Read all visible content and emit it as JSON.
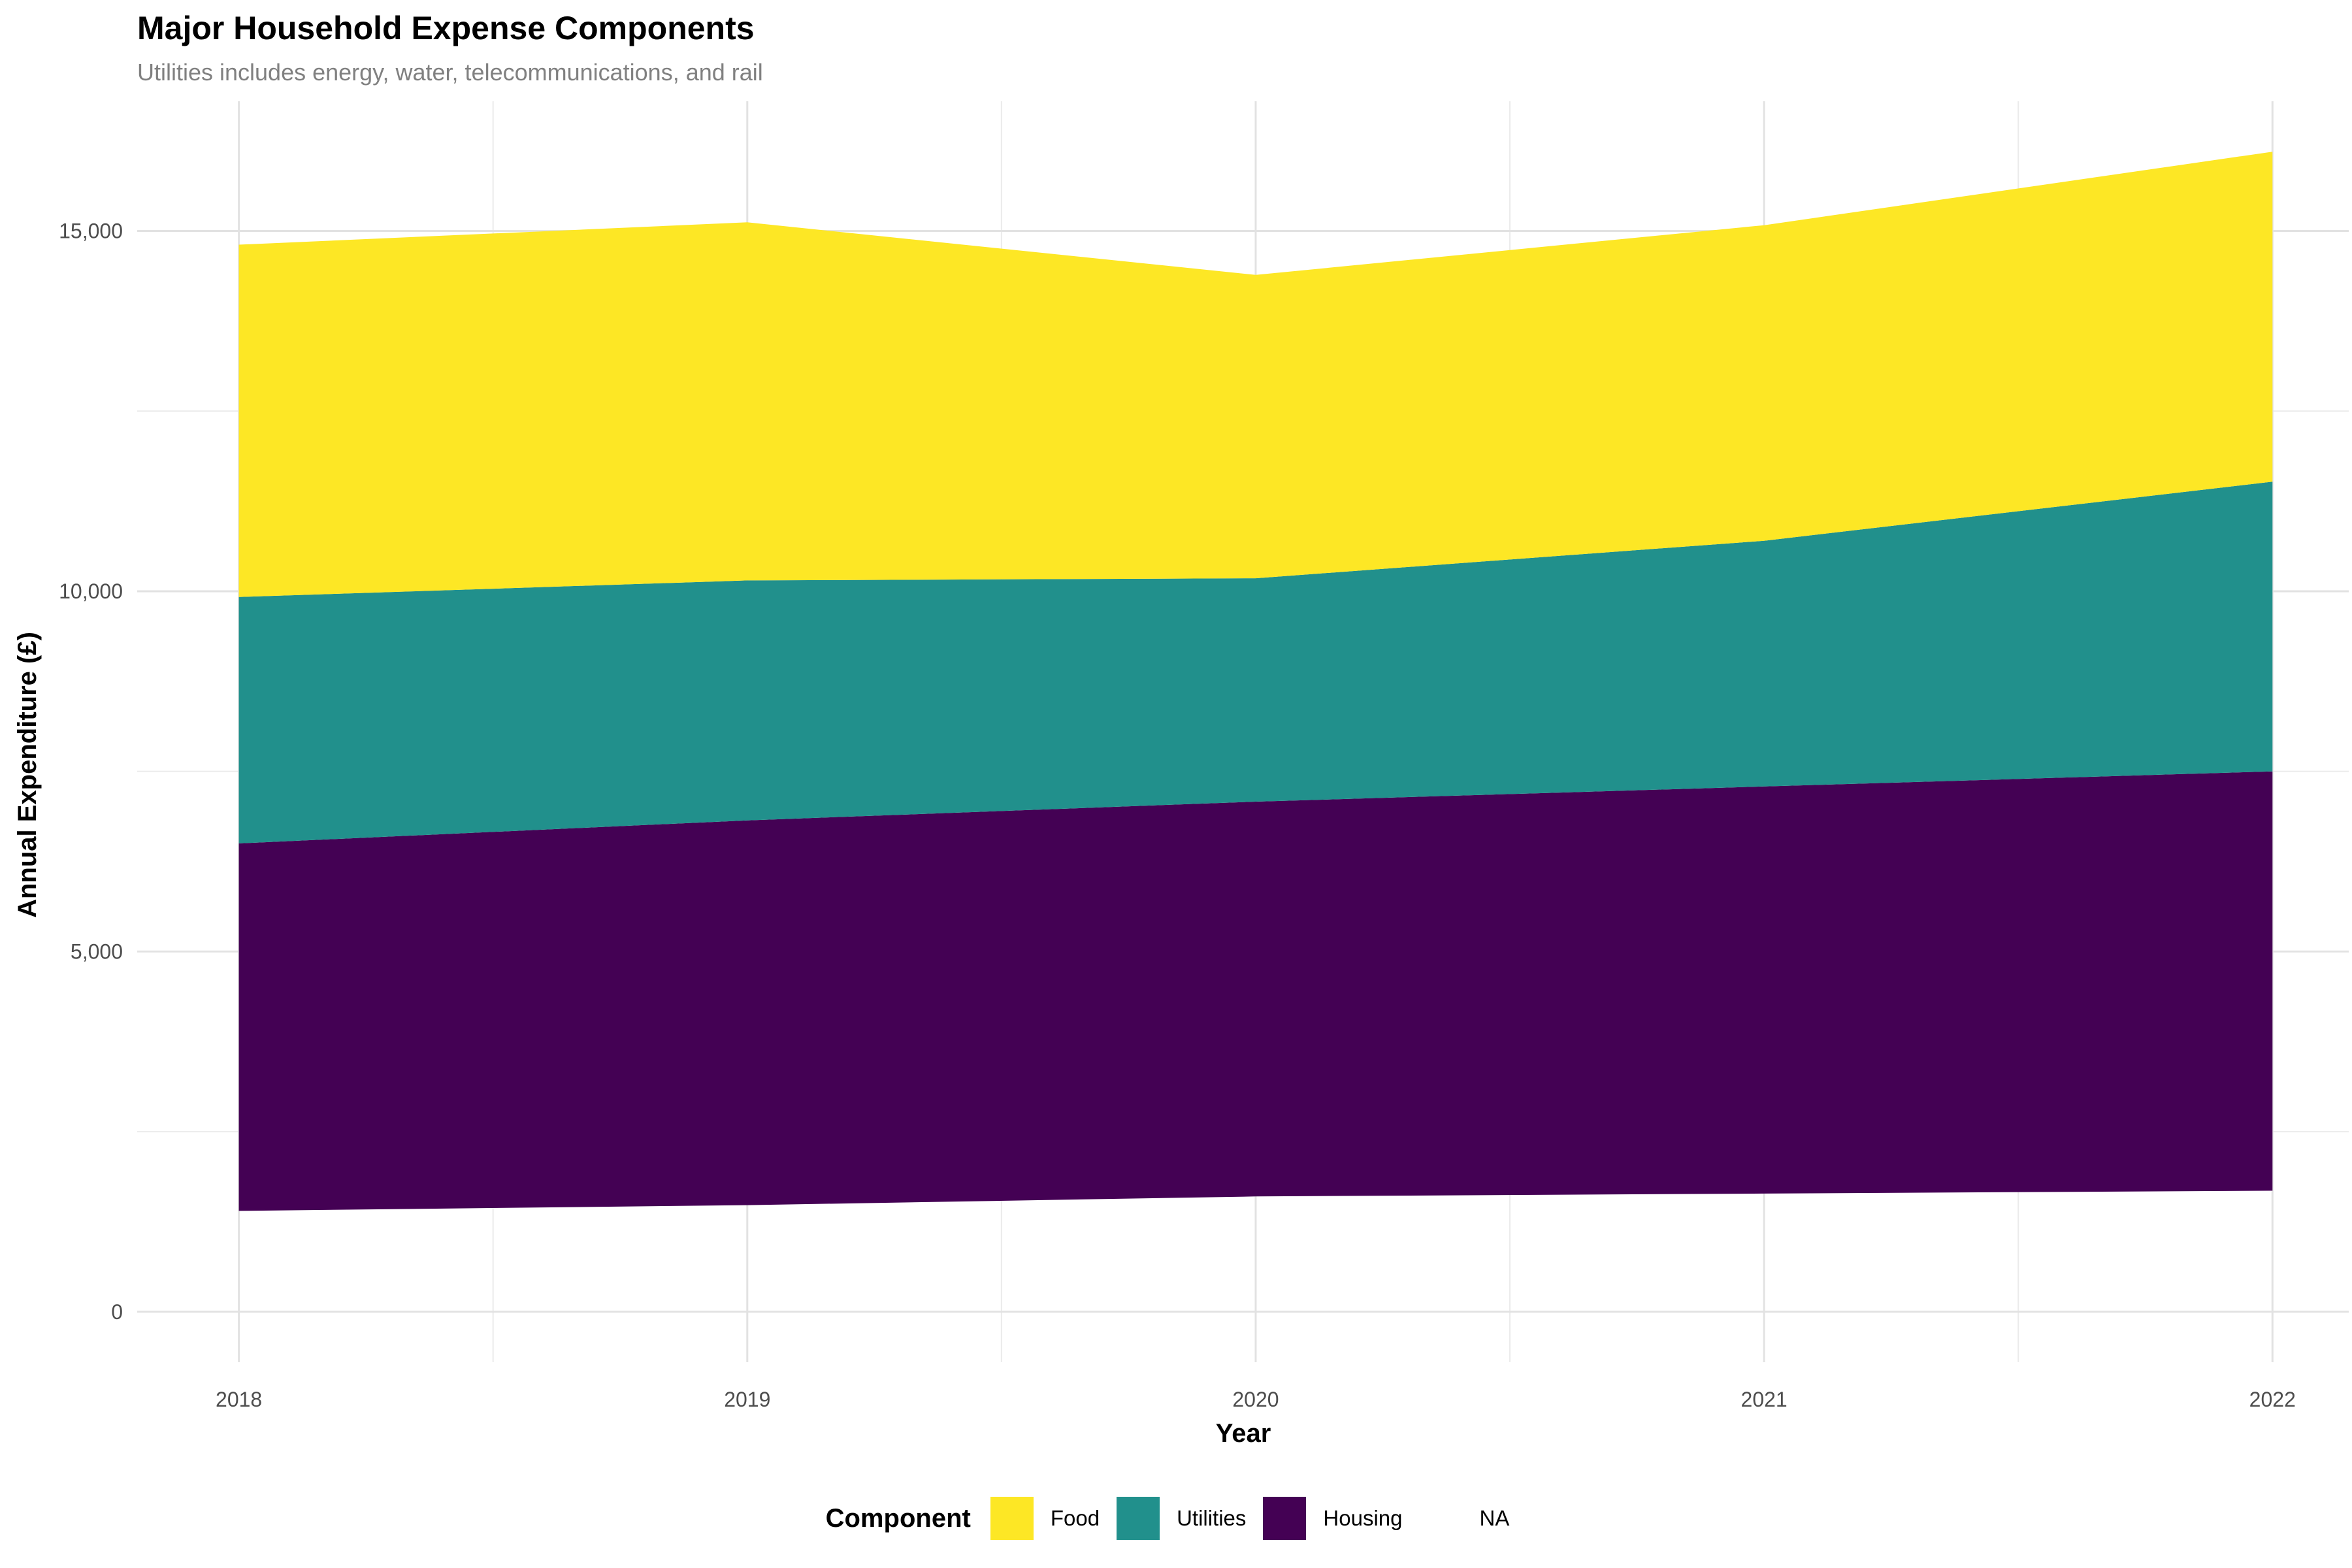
{
  "chart_data": {
    "type": "area",
    "title": "Major Household Expense Components",
    "subtitle": "Utilities includes energy, water, telecommunications, and rail",
    "xlabel": "Year",
    "ylabel": "Annual Expenditure (£)",
    "x": [
      2018,
      2019,
      2020,
      2021,
      2022
    ],
    "x_tick_labels": [
      "2018",
      "2019",
      "2020",
      "2021",
      "2022"
    ],
    "ylim": [
      -700,
      16800
    ],
    "y_ticks": [
      0,
      5000,
      10000,
      15000
    ],
    "y_tick_labels": [
      "0",
      "5,000",
      "10,000",
      "15,000"
    ],
    "stacking": "stacked",
    "base_values": [
      1400,
      1480,
      1600,
      1640,
      1680
    ],
    "series": [
      {
        "name": "Housing",
        "color": "#440154",
        "values": [
          5100,
          5340,
          5480,
          5650,
          5820
        ]
      },
      {
        "name": "Utilities",
        "color": "#21908C",
        "values": [
          3420,
          3330,
          3100,
          3410,
          4020
        ]
      },
      {
        "name": "Food",
        "color": "#FDE725",
        "values": [
          4890,
          4970,
          4210,
          4380,
          4580
        ]
      }
    ],
    "grid": true,
    "legend": {
      "title": "Component",
      "placement": "bottom",
      "entries": [
        {
          "label": "Food",
          "color": "#FDE725"
        },
        {
          "label": "Utilities",
          "color": "#21908C"
        },
        {
          "label": "Housing",
          "color": "#440154"
        },
        {
          "label": "NA",
          "color": "#ffffff"
        }
      ]
    }
  }
}
